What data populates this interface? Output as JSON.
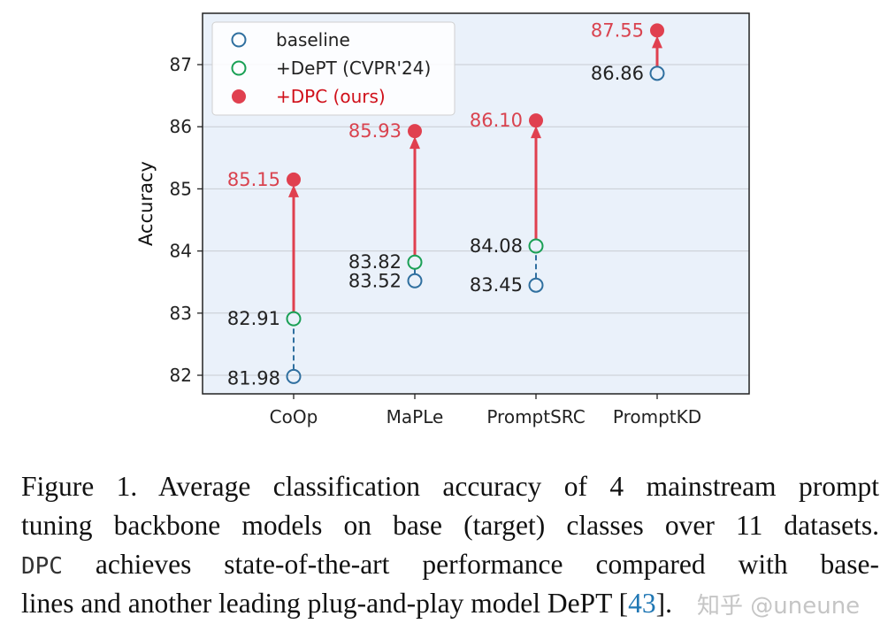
{
  "chart_data": {
    "type": "scatter",
    "categories": [
      "CoOp",
      "MaPLe",
      "PromptSRC",
      "PromptKD"
    ],
    "ylabel": "Accuracy",
    "xlabel": "",
    "yticks": [
      82,
      83,
      84,
      85,
      86,
      87
    ],
    "ylim": [
      81.7,
      87.85
    ],
    "grid": true,
    "legend_placement": "top-left",
    "background": "#eaf1fa",
    "series": [
      {
        "name": "baseline",
        "values": [
          81.98,
          83.52,
          83.45,
          86.86
        ],
        "labels": [
          "81.98",
          "83.52",
          "83.45",
          "86.86"
        ],
        "color": "#2f6f9f",
        "marker": "open-circle"
      },
      {
        "name": "+DePT (CVPR'24)",
        "values": [
          82.91,
          83.82,
          84.08,
          null
        ],
        "labels": [
          "82.91",
          "83.82",
          "84.08",
          ""
        ],
        "color": "#1aa055",
        "marker": "open-circle"
      },
      {
        "name": "+DPC (ours)",
        "values": [
          85.15,
          85.93,
          86.1,
          87.55
        ],
        "labels": [
          "85.15",
          "85.93",
          "86.10",
          "87.55"
        ],
        "color": "#e0404f",
        "marker": "filled-circle"
      }
    ],
    "legend_text_colors": [
      "#222222",
      "#222222",
      "#d0101a"
    ]
  },
  "caption": {
    "line1": "Figure 1. Average classification accuracy of 4 mainstream prompt",
    "line2": "tuning backbone models on base (target) classes over 11 datasets.",
    "line3_mono": "DPC",
    "line3": " achieves state-of-the-art performance compared with base-",
    "line4": "lines and another leading plug-and-play model DePT [",
    "line4_ref": "43",
    "line4_end": "]."
  },
  "watermark": "知乎 @uneune"
}
